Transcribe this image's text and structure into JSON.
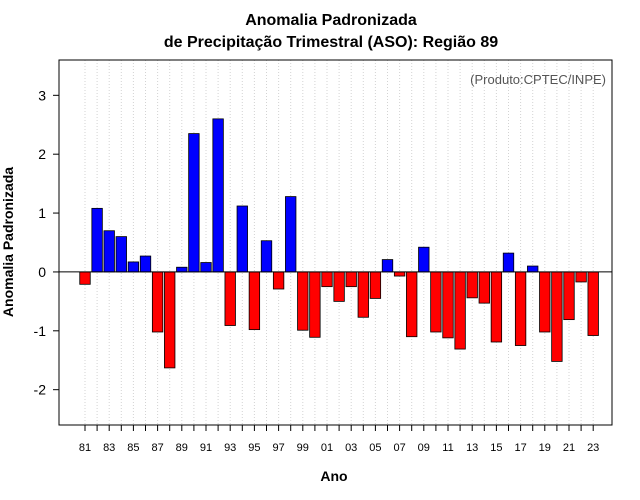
{
  "chart_data": {
    "type": "bar",
    "title": "Anomalia Padronizada",
    "subtitle": "de Precipitação Trimestral (ASO): Região 89",
    "xlabel": "Ano",
    "ylabel": "Anomalia Padronizada",
    "annotation": "(Produto:CPTEC/INPE)",
    "ylim": [
      -2.6,
      3.6
    ],
    "yticks": [
      -2,
      -1,
      0,
      1,
      2,
      3
    ],
    "grid": "vertical dotted",
    "categories": [
      "81",
      "82",
      "83",
      "84",
      "85",
      "86",
      "87",
      "88",
      "89",
      "90",
      "91",
      "92",
      "93",
      "94",
      "95",
      "96",
      "97",
      "98",
      "99",
      "00",
      "01",
      "02",
      "03",
      "04",
      "05",
      "06",
      "07",
      "08",
      "09",
      "10",
      "11",
      "12",
      "13",
      "14",
      "15",
      "16",
      "17",
      "18",
      "19",
      "20",
      "21",
      "22",
      "23"
    ],
    "xtick_labels": [
      "81",
      "83",
      "85",
      "87",
      "89",
      "91",
      "93",
      "95",
      "97",
      "99",
      "01",
      "03",
      "05",
      "07",
      "09",
      "11",
      "13",
      "15",
      "17",
      "19",
      "21",
      "23"
    ],
    "values": [
      -0.21,
      1.08,
      0.7,
      0.6,
      0.17,
      0.27,
      -1.02,
      -1.63,
      0.08,
      2.35,
      0.16,
      2.6,
      -0.91,
      1.12,
      -0.98,
      0.53,
      -0.29,
      1.28,
      -0.99,
      -1.11,
      -0.25,
      -0.5,
      -0.25,
      -0.77,
      -0.45,
      0.21,
      -0.07,
      -1.1,
      0.42,
      -1.02,
      -1.12,
      -1.31,
      -0.44,
      -0.53,
      -1.19,
      0.32,
      -1.25,
      0.1,
      -1.02,
      -1.52,
      -0.81,
      -0.17,
      -1.08
    ],
    "colors": {
      "positive": "#0000ff",
      "negative": "#ff0000",
      "edge": "#000000",
      "grid": "#d3d3d3"
    }
  }
}
